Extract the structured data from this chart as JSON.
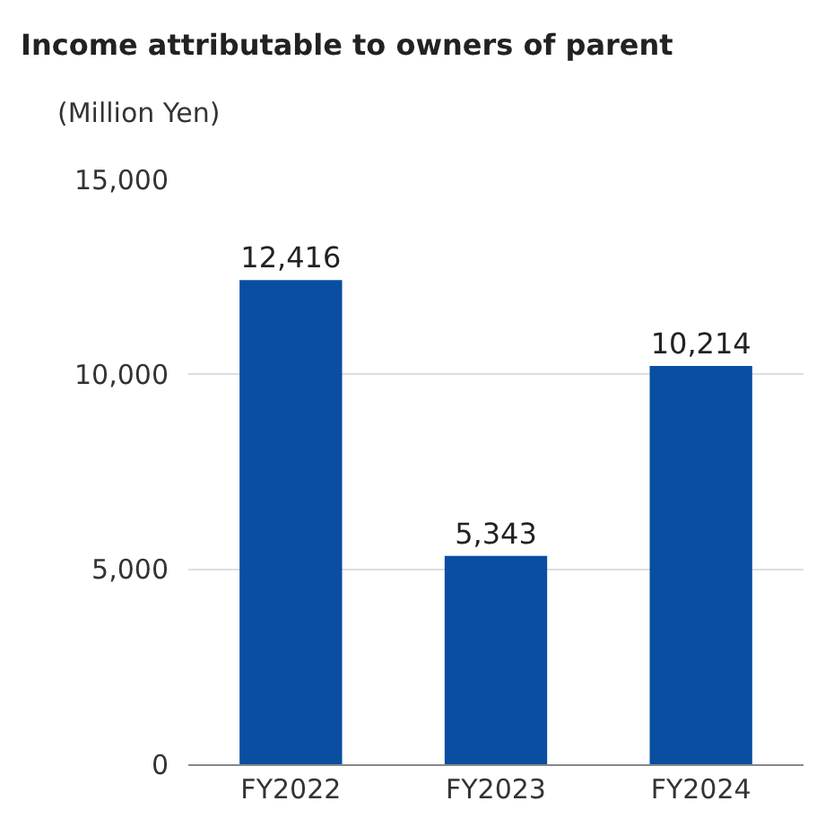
{
  "chart_data": {
    "type": "bar",
    "title": "Income attributable to owners of parent",
    "ylabel": "(Million Yen)",
    "categories": [
      "FY2022",
      "FY2023",
      "FY2024"
    ],
    "values": [
      12416,
      5343,
      10214
    ],
    "color": "#0a4ea2",
    "ylim": [
      0,
      15000
    ],
    "yticks": [
      {
        "value": 0,
        "label": "0"
      },
      {
        "value": 5000,
        "label": "5,000"
      },
      {
        "value": 10000,
        "label": "10,000"
      },
      {
        "value": 15000,
        "label": "15,000"
      }
    ],
    "value_labels": [
      "12,416",
      "5,343",
      "10,214"
    ],
    "grid": "y"
  }
}
